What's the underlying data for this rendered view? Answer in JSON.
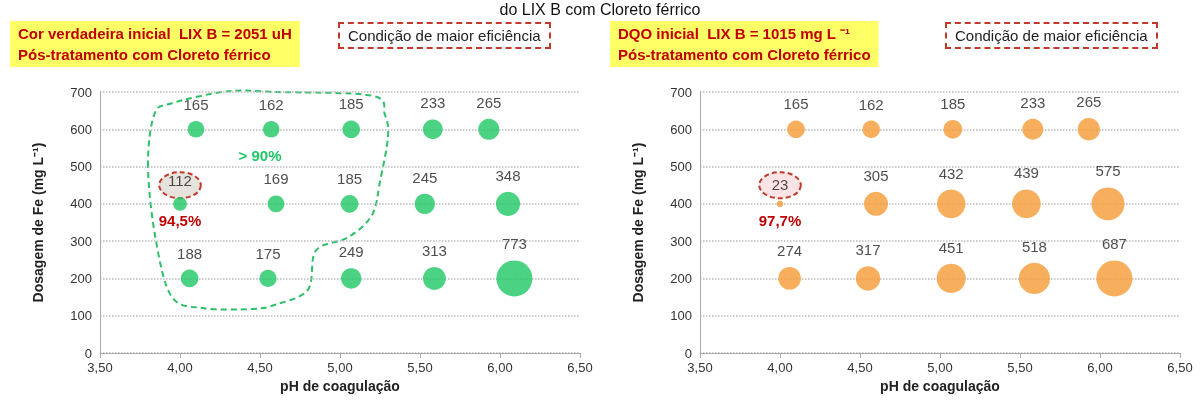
{
  "chart_data": [
    {
      "type": "bubble",
      "title": "Cor verdadeira inicial  LIX B = 2051 uH",
      "subtitle": "Pós-tratamento com Cloreto férrico",
      "xlabel": "pH de coagulação",
      "ylabel": "Dosagem de Fe (mg L⁻¹)",
      "annotations": [
        "Condição de maior eficiência",
        "do LIX B com Cloreto férrico",
        "> 90%",
        "94,5%"
      ],
      "x": [
        4.1,
        4.57,
        5.07,
        5.58,
        5.93,
        4.0,
        4.6,
        5.06,
        5.53,
        6.05,
        4.06,
        4.55,
        5.07,
        5.59,
        6.09
      ],
      "values": [
        600,
        600,
        600,
        600,
        600,
        400,
        400,
        400,
        400,
        400,
        200,
        200,
        200,
        200,
        200
      ],
      "sizes": [
        165,
        162,
        185,
        233,
        265,
        112,
        169,
        185,
        245,
        348,
        188,
        175,
        249,
        313,
        773
      ],
      "value_labels": [
        "165",
        "162",
        "185",
        "233",
        "265",
        "112",
        "169",
        "185",
        "245",
        "348",
        "188",
        "175",
        "249",
        "313",
        "773"
      ],
      "color": "#1ec864",
      "xlim": [
        3.5,
        6.5
      ],
      "xticks": [
        {
          "value": 3.5,
          "label": "3,50"
        },
        {
          "value": 4,
          "label": "4,00"
        },
        {
          "value": 4.5,
          "label": "4,50"
        },
        {
          "value": 5,
          "label": "5,00"
        },
        {
          "value": 5.5,
          "label": "5,50"
        },
        {
          "value": 6,
          "label": "6,00"
        },
        {
          "value": 6.5,
          "label": "6,50"
        }
      ],
      "ylim": [
        0,
        700
      ],
      "yticks": [
        0,
        100,
        200,
        300,
        400,
        500,
        600,
        700
      ],
      "grid": "y"
    },
    {
      "type": "bubble",
      "title": "DQO inicial  LIX B = 1015 mg L ⁻¹",
      "subtitle": "Pós-tratamento com Cloreto férrico",
      "xlabel": "pH de coagulação",
      "ylabel": "Dosagem de Fe (mg L⁻¹)",
      "annotations": [
        "Condição de maior eficiência",
        "97,7%"
      ],
      "x": [
        4.1,
        4.57,
        5.08,
        5.58,
        5.93,
        4.0,
        4.6,
        5.07,
        5.54,
        6.05,
        4.06,
        4.55,
        5.07,
        5.59,
        6.09
      ],
      "values": [
        600,
        600,
        600,
        600,
        600,
        400,
        400,
        400,
        400,
        400,
        200,
        200,
        200,
        200,
        200
      ],
      "sizes": [
        165,
        162,
        185,
        233,
        265,
        23,
        305,
        432,
        439,
        575,
        274,
        317,
        451,
        518,
        687
      ],
      "value_labels": [
        "165",
        "162",
        "185",
        "233",
        "265",
        "23",
        "305",
        "432",
        "439",
        "575",
        "274",
        "317",
        "451",
        "518",
        "687"
      ],
      "color": "#f59a35",
      "xlim": [
        3.5,
        6.5
      ],
      "xticks": [
        {
          "value": 3.5,
          "label": "3,50"
        },
        {
          "value": 4,
          "label": "4,00"
        },
        {
          "value": 4.5,
          "label": "4,50"
        },
        {
          "value": 5,
          "label": "5,00"
        },
        {
          "value": 5.5,
          "label": "5,50"
        },
        {
          "value": 6,
          "label": "6,00"
        },
        {
          "value": 6.5,
          "label": "6,50"
        }
      ],
      "ylim": [
        0,
        700
      ],
      "yticks": [
        0,
        100,
        200,
        300,
        400,
        500,
        600,
        700
      ],
      "grid": "y"
    }
  ]
}
